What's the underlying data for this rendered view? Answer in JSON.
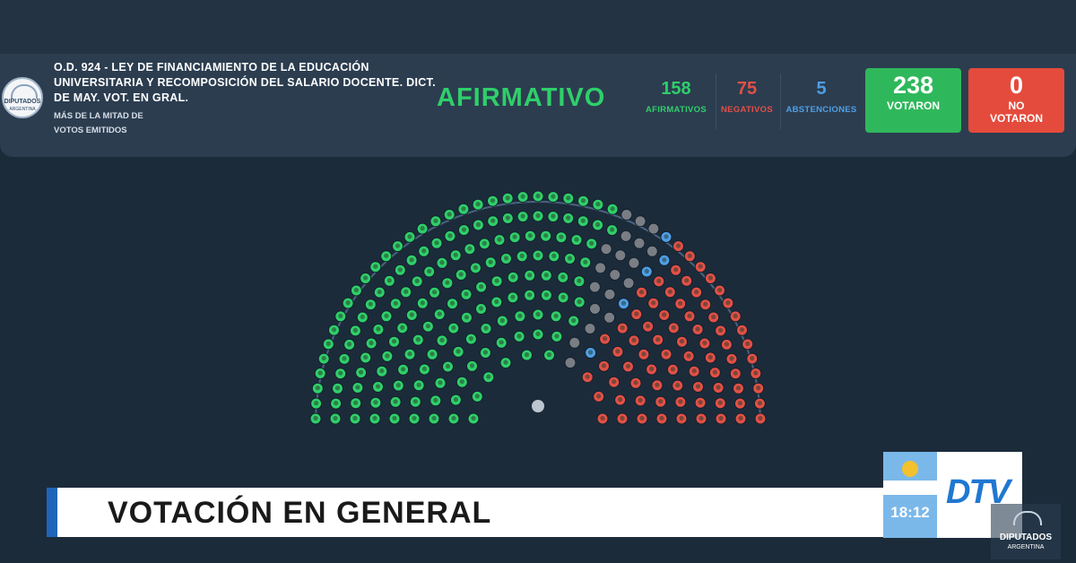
{
  "colors": {
    "background": "#1c2b3a",
    "header_bg": "#2c3d50",
    "afirmativo": "#2fcf6a",
    "negativo": "#e25046",
    "abstencion": "#4f9fe6",
    "absent": "#7a7e84",
    "votaron_box": "#2fb85b",
    "no_votaron_box": "#e54b3c",
    "accent_blue": "#1f66b8"
  },
  "logo": {
    "name": "DIPUTADOS",
    "sub": "ARGENTINA",
    "icon": "congress-dome-icon"
  },
  "header": {
    "title_lines": [
      "O.D. 924 - LEY DE FINANCIAMIENTO DE LA EDUCACIÓN",
      "UNIVERSITARIA Y RECOMPOSICIÓN DEL SALARIO DOCENTE. DICT.",
      "DE MAY. VOT. EN GRAL."
    ],
    "subtitle_lines": [
      "MÁS DE LA MITAD DE",
      "VOTOS EMITIDOS"
    ],
    "result": "AFIRMATIVO"
  },
  "stats": {
    "afirmativos": {
      "value": "158",
      "label": "AFIRMATIVOS"
    },
    "negativos": {
      "value": "75",
      "label": "NEGATIVOS"
    },
    "abstenciones": {
      "value": "5",
      "label": "ABSTENCIONES"
    },
    "votaron": {
      "value": "238",
      "label": "VOTARON"
    },
    "no_votaron": {
      "value": "0",
      "label_1": "NO",
      "label_2": "VOTARON"
    }
  },
  "chamber": {
    "seats_total": 257,
    "afirmativos": 158,
    "negativos": 75,
    "abstenciones": 5,
    "ausentes": 19
  },
  "lower_third": {
    "text": "VOTACIÓN EN GENERAL"
  },
  "clock": {
    "time": "18:12",
    "icon": "argentina-flag-icon"
  },
  "channel": {
    "logo_text": "DTV"
  },
  "corner_logo": {
    "name": "DIPUTADOS",
    "sub": "ARGENTINA"
  }
}
